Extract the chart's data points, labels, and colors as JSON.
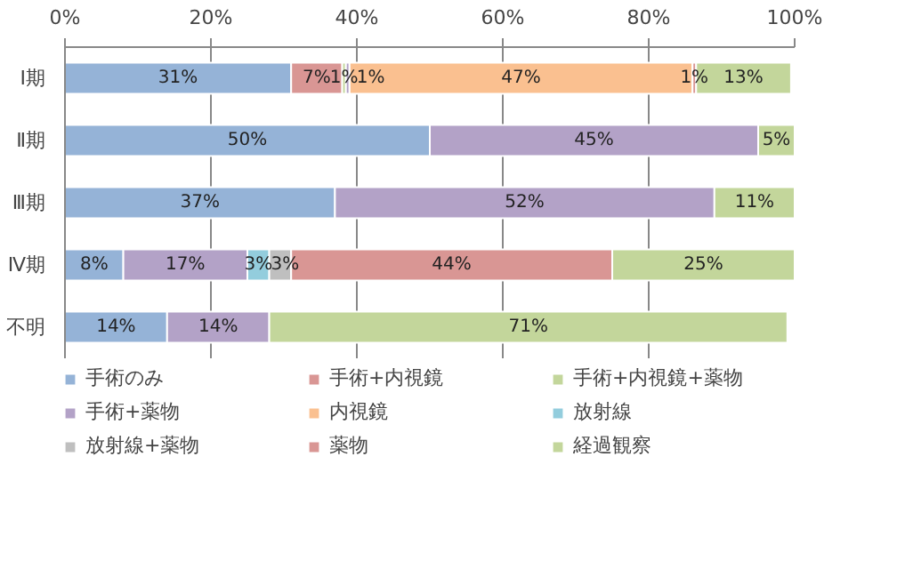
{
  "chart_data": {
    "type": "bar",
    "orientation": "horizontal",
    "stacked": true,
    "categories": [
      "Ⅰ期",
      "Ⅱ期",
      "Ⅲ期",
      "Ⅳ期",
      "不明"
    ],
    "xlim": [
      0,
      100
    ],
    "xticks": [
      {
        "value": 0,
        "label": "0%"
      },
      {
        "value": 20,
        "label": "20%"
      },
      {
        "value": 40,
        "label": "40%"
      },
      {
        "value": 60,
        "label": "60%"
      },
      {
        "value": 80,
        "label": "80%"
      },
      {
        "value": 100,
        "label": "100%"
      }
    ],
    "grid": "x",
    "legend": "bottom",
    "series": [
      {
        "name": "手術のみ",
        "color": "#95b3d7",
        "values": [
          31,
          50,
          37,
          8,
          14
        ],
        "value_labels": [
          "31%",
          "50%",
          "37%",
          "8%",
          "14%"
        ]
      },
      {
        "name": "手術+内視鏡",
        "color": "#d99694",
        "values": [
          7,
          0,
          0,
          0,
          0
        ],
        "value_labels": [
          "7%",
          null,
          null,
          null,
          null
        ]
      },
      {
        "name": "手術+内視鏡+薬物",
        "color": "#c3d69b",
        "values": [
          0.5,
          0,
          0,
          0,
          0
        ],
        "value_labels": [
          "1%",
          null,
          null,
          null,
          null
        ]
      },
      {
        "name": "手術+薬物",
        "color": "#b3a2c7",
        "values": [
          0.5,
          45,
          52,
          17,
          14
        ],
        "value_labels": [
          "1%",
          "45%",
          "52%",
          "17%",
          "14%"
        ]
      },
      {
        "name": "内視鏡",
        "color": "#fac090",
        "values": [
          47,
          0,
          0,
          0,
          0
        ],
        "value_labels": [
          "47%",
          null,
          null,
          null,
          null
        ]
      },
      {
        "name": "放射線",
        "color": "#93cddd",
        "values": [
          0,
          0,
          0,
          3,
          0
        ],
        "value_labels": [
          null,
          null,
          null,
          "3%",
          null
        ]
      },
      {
        "name": "放射線+薬物",
        "color": "#bfbfbf",
        "values": [
          0,
          0,
          0,
          3,
          0
        ],
        "value_labels": [
          null,
          null,
          null,
          "3%",
          null
        ]
      },
      {
        "name": "薬物",
        "color": "#d99694",
        "values": [
          0.5,
          0,
          0,
          44,
          0
        ],
        "value_labels": [
          "1%",
          null,
          null,
          "44%",
          null
        ]
      },
      {
        "name": "経過観察",
        "color": "#c3d69b",
        "values": [
          13,
          5,
          11,
          25,
          71
        ],
        "value_labels": [
          "13%",
          "5%",
          "11%",
          "25%",
          "71%"
        ]
      }
    ]
  }
}
